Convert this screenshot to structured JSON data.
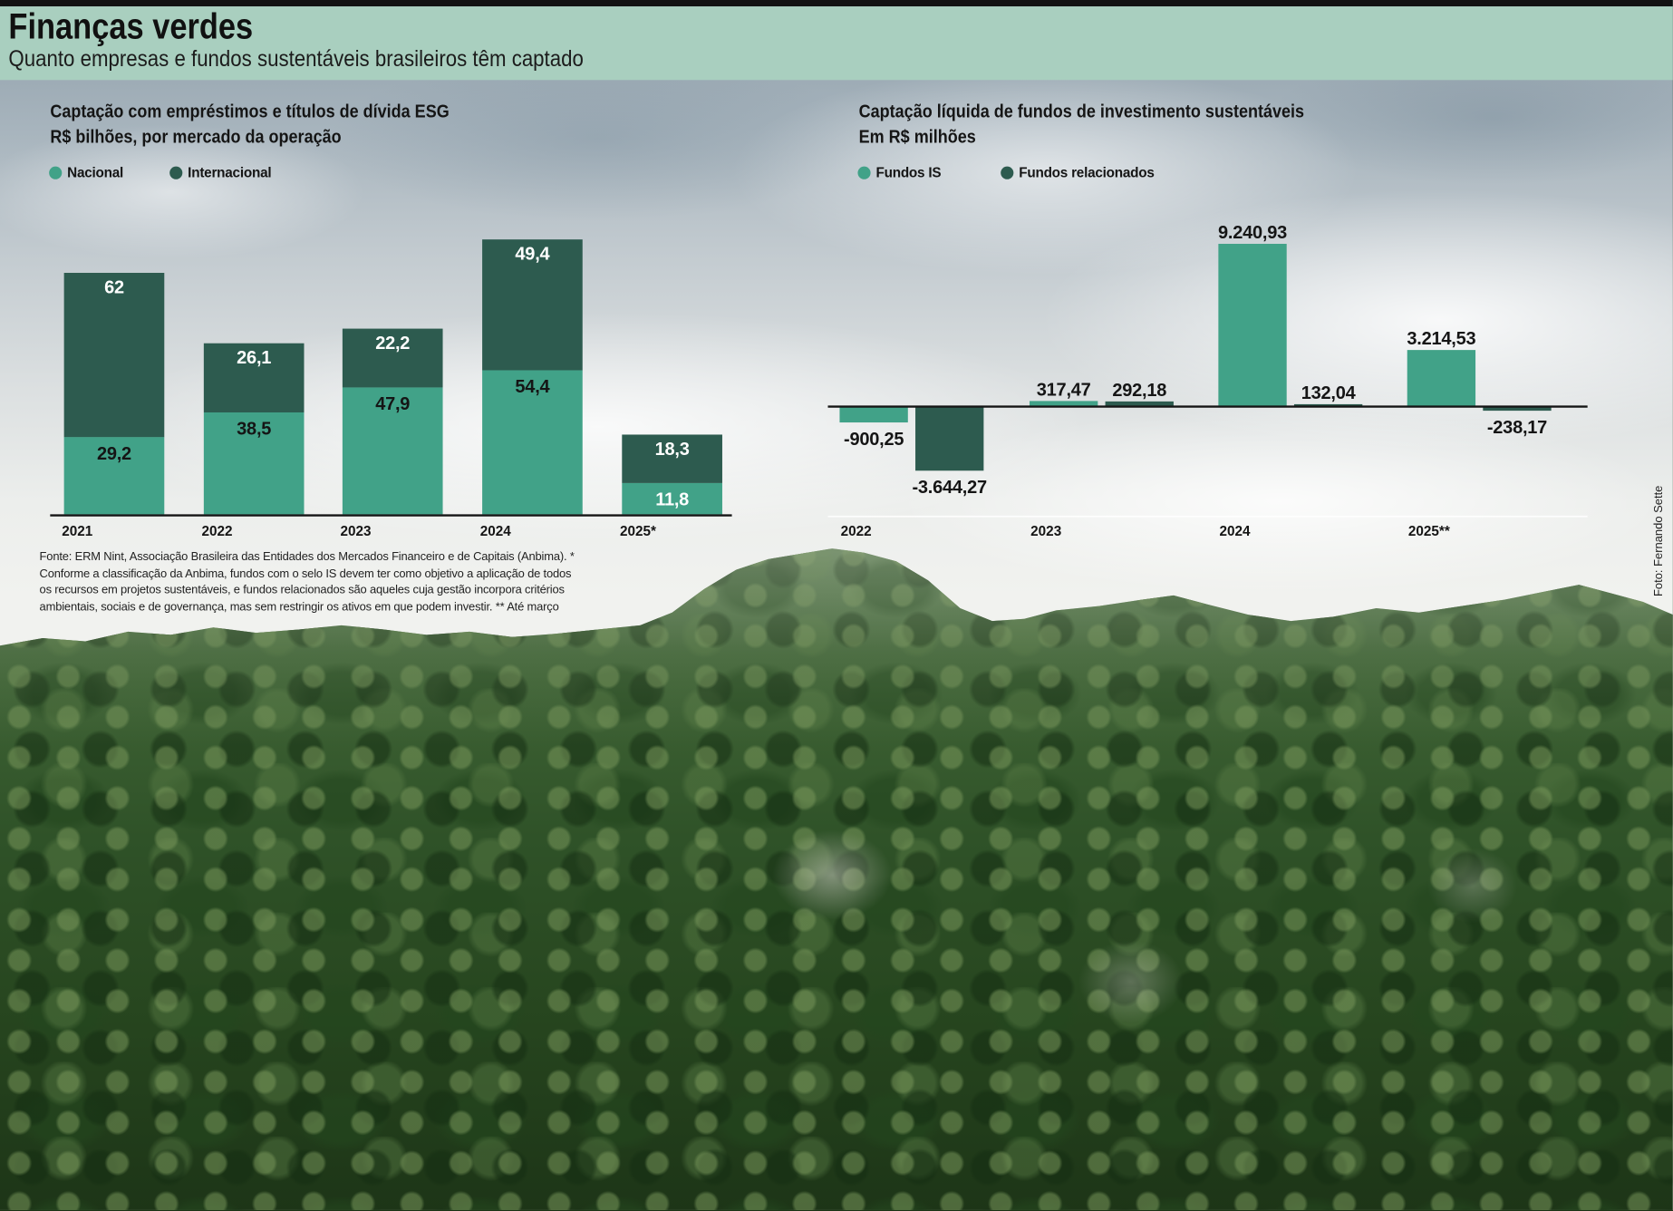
{
  "header": {
    "title": "Finanças verdes",
    "subtitle": "Quanto empresas e fundos sustentáveis brasileiros têm captado"
  },
  "colors": {
    "header_band": "#a9cfbf",
    "top_rule": "#121212"
  },
  "chart_data": [
    {
      "type": "bar",
      "stacked": true,
      "title": "Captação com empréstimos e títulos de dívida ESG",
      "subtitle": "R$ bilhões, por mercado da operação",
      "categories": [
        "2021",
        "2022",
        "2023",
        "2024",
        "2025*"
      ],
      "series": [
        {
          "name": "Nacional",
          "color": "#41a288",
          "values": [
            29.2,
            38.5,
            47.9,
            54.4,
            11.8
          ],
          "labels": [
            "29,2",
            "38,5",
            "47,9",
            "54,4",
            "11,8"
          ]
        },
        {
          "name": "Internacional",
          "color": "#2d5b4f",
          "values": [
            62,
            26.1,
            22.2,
            49.4,
            18.3
          ],
          "labels": [
            "62",
            "26,1",
            "22,2",
            "49,4",
            "18,3"
          ]
        }
      ],
      "ylim": [
        0,
        110
      ],
      "legend": "top-left",
      "grid": false
    },
    {
      "type": "bar",
      "stacked": false,
      "title": "Captação líquida de fundos de investimento sustentáveis",
      "subtitle": "Em R$ milhões",
      "categories": [
        "2022",
        "2023",
        "2024",
        "2025**"
      ],
      "series": [
        {
          "name": "Fundos IS",
          "color": "#41a288",
          "values": [
            -900.25,
            317.47,
            9240.93,
            3214.53
          ],
          "labels": [
            "-900,25",
            "317,47",
            "9.240,93",
            "3.214,53"
          ]
        },
        {
          "name": "Fundos relacionados",
          "color": "#2d5b4f",
          "values": [
            -3644.27,
            292.18,
            132.04,
            -238.17
          ],
          "labels": [
            "-3.644,27",
            "292,18",
            "132,04",
            "-238,17"
          ]
        }
      ],
      "ylim": [
        -4000,
        10000
      ],
      "legend": "top-left",
      "grid": false
    }
  ],
  "source_note": {
    "lines": [
      "Fonte:  ERM Nint, Associação Brasileira das Entidades dos Mercados Financeiro e de Capitais (Anbima). *",
      "Conforme a classificação da Anbima, fundos com o selo IS devem ter como objetivo a aplicação de todos",
      "os recursos em projetos sustentáveis, e fundos relacionados são aqueles cuja gestão incorpora critérios",
      "ambientais, sociais e de governança, mas sem restringir os ativos em que podem investir. ** Até março"
    ]
  },
  "photo_credit": "Foto: Fernando Sette"
}
